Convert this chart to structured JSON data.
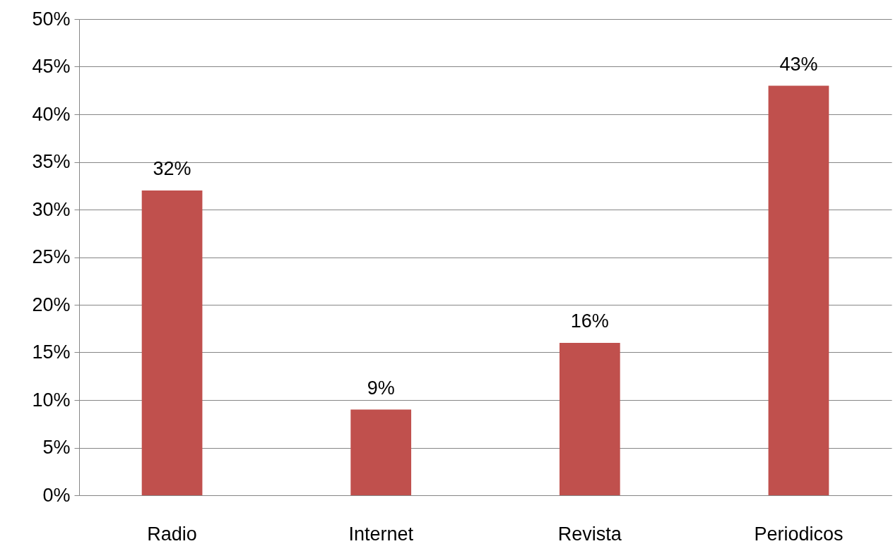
{
  "chart_data": {
    "type": "bar",
    "categories": [
      "Radio",
      "Internet",
      "Revista",
      "Periodicos"
    ],
    "values": [
      32,
      9,
      16,
      43
    ],
    "color": "#c0504d",
    "value_labels": [
      "32%",
      "9%",
      "16%",
      "43%"
    ],
    "ylim": [
      0,
      50
    ],
    "yticks": [
      {
        "value": 0,
        "label": "0%"
      },
      {
        "value": 5,
        "label": "5%"
      },
      {
        "value": 10,
        "label": "10%"
      },
      {
        "value": 15,
        "label": "15%"
      },
      {
        "value": 20,
        "label": "20%"
      },
      {
        "value": 25,
        "label": "25%"
      },
      {
        "value": 30,
        "label": "30%"
      },
      {
        "value": 35,
        "label": "35%"
      },
      {
        "value": 40,
        "label": "40%"
      },
      {
        "value": 45,
        "label": "45%"
      },
      {
        "value": 50,
        "label": "50%"
      }
    ],
    "grid": true
  }
}
